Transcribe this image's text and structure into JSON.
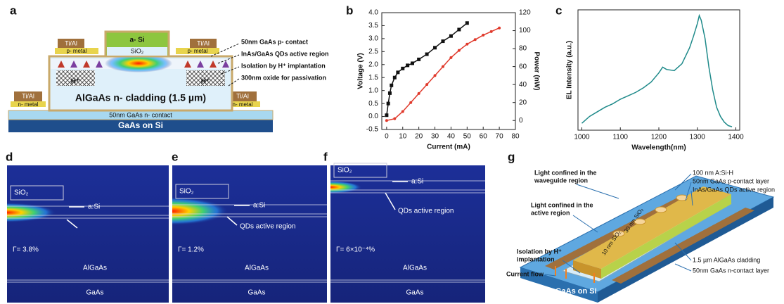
{
  "panel_labels": [
    "a",
    "b",
    "c",
    "d",
    "e",
    "f",
    "g"
  ],
  "diagram_a": {
    "a_si": "a- Si",
    "sio2": "SiO₂",
    "ti_al": [
      "Ti/Al",
      "Ti/Al",
      "Ti/Al",
      "Ti/Al"
    ],
    "p_metal": [
      "p- metal",
      "p- metal"
    ],
    "n_metal": [
      "n- metal",
      "n- metal"
    ],
    "h_plus": [
      "H⁺",
      "H⁺"
    ],
    "cladding": "AlGaAs n- cladding (1.5 µm)",
    "n_contact": "50nm GaAs n- contact",
    "substrate": "GaAs on Si",
    "callouts": [
      "50nm GaAs p- contact",
      "InAs/GaAs QDs active region",
      "Isolation by H⁺ implantation",
      "300nm oxide for passivation"
    ]
  },
  "chart_data": [
    {
      "type": "line",
      "xlabel": "Current (mA)",
      "ylabel": "Voltage (V)",
      "y2label": "Power (nW)",
      "xlim": [
        -3,
        80
      ],
      "xticks": [
        0,
        10,
        20,
        30,
        40,
        50,
        60,
        70,
        80
      ],
      "ylim": [
        -0.5,
        4.0
      ],
      "yticks": [
        -0.5,
        {
          "value": 0,
          "label": "0.0"
        },
        0.5,
        {
          "value": 1,
          "label": "1.0"
        },
        1.5,
        {
          "value": 2,
          "label": "2.0"
        },
        2.5,
        {
          "value": 3,
          "label": "3.0"
        },
        3.5,
        {
          "value": 4,
          "label": "4.0"
        }
      ],
      "y2lim": [
        -10,
        120
      ],
      "y2ticks": [
        0,
        20,
        40,
        60,
        80,
        100,
        120
      ],
      "series": [
        {
          "color": "#111111",
          "marker": "square",
          "x": [
            0,
            1,
            2,
            3,
            5,
            7,
            10,
            13,
            16,
            20,
            25,
            30,
            35,
            40,
            45,
            50
          ],
          "values": [
            0.05,
            0.5,
            0.9,
            1.2,
            1.5,
            1.7,
            1.85,
            1.97,
            2.05,
            2.2,
            2.4,
            2.65,
            2.9,
            3.1,
            3.35,
            3.6
          ]
        },
        {
          "color": "#e0392b",
          "marker": "circle",
          "axis": "y2",
          "x": [
            0,
            5,
            10,
            15,
            20,
            25,
            30,
            35,
            40,
            45,
            50,
            55,
            60,
            65,
            70
          ],
          "values": [
            0,
            2,
            10,
            20,
            30,
            40,
            50,
            60,
            70,
            78,
            85,
            90,
            95,
            99,
            103
          ]
        }
      ]
    },
    {
      "type": "line",
      "xlabel": "Wavelength(nm)",
      "ylabel": "EL Intensity (a.u.)",
      "xlim": [
        990,
        1410
      ],
      "xticks": [
        1000,
        1100,
        1200,
        1300,
        1400
      ],
      "ylim": [
        0,
        1.05
      ],
      "x": [
        1000,
        1020,
        1040,
        1060,
        1080,
        1100,
        1120,
        1140,
        1160,
        1180,
        1200,
        1210,
        1220,
        1240,
        1260,
        1280,
        1290,
        1300,
        1305,
        1310,
        1320,
        1330,
        1340,
        1350,
        1360,
        1370,
        1380,
        1390
      ],
      "series": [
        {
          "color": "#1f8a8a",
          "values": [
            0.06,
            0.12,
            0.16,
            0.2,
            0.23,
            0.27,
            0.3,
            0.33,
            0.37,
            0.42,
            0.5,
            0.55,
            0.53,
            0.52,
            0.58,
            0.72,
            0.82,
            0.93,
            1.0,
            0.96,
            0.8,
            0.55,
            0.35,
            0.2,
            0.12,
            0.07,
            0.04,
            0.03
          ]
        }
      ]
    }
  ],
  "mode_panels": [
    {
      "sio2": "SiO₂",
      "a_si": "a:Si",
      "gamma": "Γ= 3.8%",
      "cladding": "AlGaAs",
      "substrate": "GaAs"
    },
    {
      "sio2": "SiO₂",
      "a_si": "a:Si",
      "qd": "QDs active region",
      "gamma": "Γ= 1.2%",
      "cladding": "AlGaAs",
      "substrate": "GaAs"
    },
    {
      "sio2": "SiO₂",
      "a_si": "a:Si",
      "qd": "QDs active region",
      "gamma": "Γ= 6×10⁻⁴%",
      "cladding": "AlGaAs",
      "substrate": "GaAs"
    }
  ],
  "diagram_g": {
    "labels": [
      [
        "Light confined in the",
        "waveguide region"
      ],
      [
        "Light confined in the",
        "active region"
      ],
      [
        "Isolation by H⁺",
        "implantation"
      ],
      [
        "Current flow"
      ]
    ],
    "layer_labels": [
      "100 nm A:Si-H",
      "50nm GaAs p-contact layer",
      "InAs/GaAs QDs active region",
      "1.5 µm AlGaAs cladding",
      "50nm GaAs n-contact layer"
    ],
    "oxide_labels": [
      "30 nm SiO₂",
      "10 nm SiO₂"
    ],
    "substrate": "GaAs on Si"
  }
}
